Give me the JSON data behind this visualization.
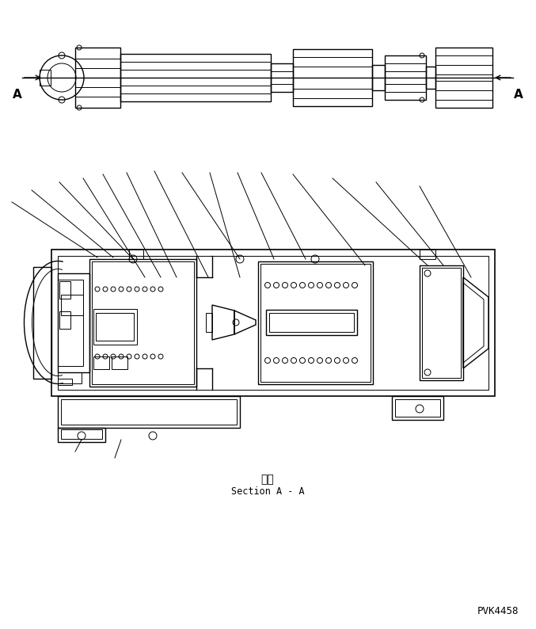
{
  "bg_color": "#ffffff",
  "line_color": "#000000",
  "lw_thin": 0.7,
  "lw_med": 1.0,
  "lw_thick": 1.2,
  "title_jp": "断面",
  "title_en": "Section A - A",
  "watermark": "PVK4458",
  "fig_width": 6.77,
  "fig_height": 7.94,
  "dpi": 100
}
